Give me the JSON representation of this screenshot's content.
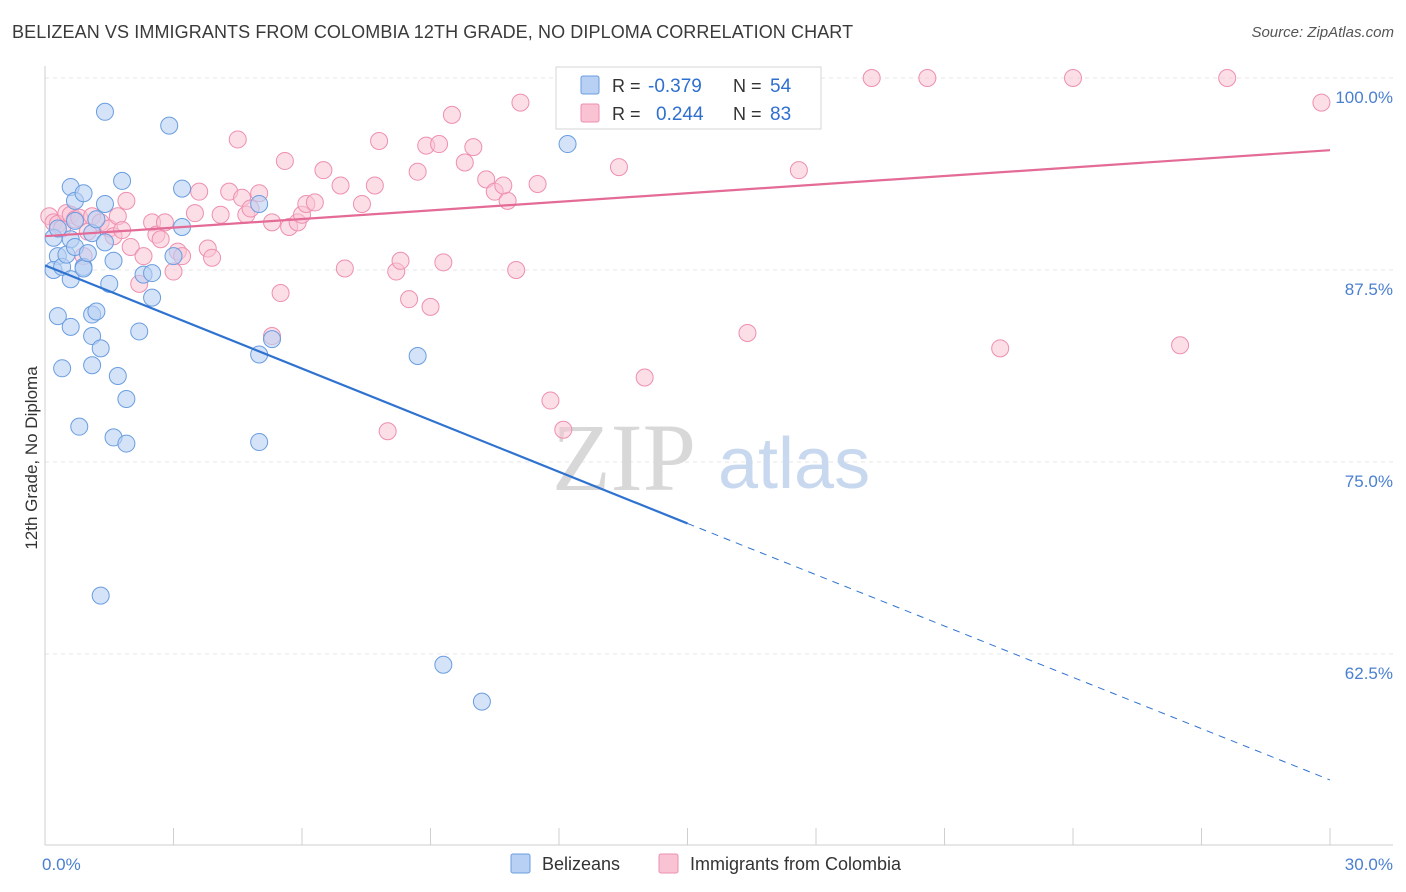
{
  "header": {
    "title": "BELIZEAN VS IMMIGRANTS FROM COLOMBIA 12TH GRADE, NO DIPLOMA CORRELATION CHART",
    "source": "Source: ZipAtlas.com"
  },
  "watermark": {
    "part1": "ZIP",
    "part2": "atlas"
  },
  "legend": {
    "rows": [
      {
        "r_label": "R =",
        "r_value": "-0.379",
        "n_label": "N =",
        "n_value": "54"
      },
      {
        "r_label": "R =",
        "r_value": "0.244",
        "n_label": "N =",
        "n_value": "83"
      }
    ]
  },
  "bottom_legend": {
    "items": [
      "Belizeans",
      "Immigrants from Colombia"
    ]
  },
  "colors": {
    "belizeans_fill": "#b8d0f4",
    "belizeans_stroke": "#6a9de0",
    "belizeans_line": "#2f72d0",
    "colombia_fill": "#f9c3d4",
    "colombia_stroke": "#ee8fb0",
    "colombia_line": "#e36b96",
    "grid": "#e6e6e6",
    "tick_text": "#4a7fd0"
  },
  "chart_data": {
    "type": "scatter",
    "title": "BELIZEAN VS IMMIGRANTS FROM COLOMBIA 12TH GRADE, NO DIPLOMA CORRELATION CHART",
    "xlabel": "",
    "ylabel": "12th Grade, No Diploma",
    "xlim": [
      0,
      30
    ],
    "ylim": [
      51,
      102
    ],
    "x_tick_labels": [
      "0.0%",
      "30.0%"
    ],
    "x_tick_values": [
      0,
      30
    ],
    "y_tick_labels": [
      "62.5%",
      "75.0%",
      "87.5%",
      "100.0%"
    ],
    "y_tick_values": [
      62.5,
      75,
      87.5,
      100
    ],
    "grid": true,
    "legend_position": "top-center",
    "series": [
      {
        "name": "Belizeans",
        "r": -0.379,
        "n": 54,
        "trend": {
          "x": [
            0,
            15
          ],
          "y": [
            87.8,
            71.0
          ],
          "dashed_to": [
            30,
            54.3
          ]
        },
        "points": [
          [
            0.2,
            89.6
          ],
          [
            0.3,
            90.2
          ],
          [
            0.3,
            88.4
          ],
          [
            0.2,
            87.5
          ],
          [
            0.4,
            87.7
          ],
          [
            0.3,
            84.5
          ],
          [
            0.5,
            88.5
          ],
          [
            0.6,
            89.5
          ],
          [
            0.6,
            86.9
          ],
          [
            0.4,
            81.1
          ],
          [
            0.6,
            83.8
          ],
          [
            0.6,
            92.9
          ],
          [
            0.7,
            92.0
          ],
          [
            0.7,
            89.0
          ],
          [
            0.7,
            90.7
          ],
          [
            0.9,
            87.7
          ],
          [
            0.9,
            87.6
          ],
          [
            0.9,
            92.5
          ],
          [
            1.0,
            88.6
          ],
          [
            1.1,
            84.6
          ],
          [
            1.1,
            83.2
          ],
          [
            1.1,
            81.3
          ],
          [
            1.1,
            89.9
          ],
          [
            1.2,
            84.8
          ],
          [
            1.3,
            82.4
          ],
          [
            1.2,
            90.8
          ],
          [
            1.4,
            91.8
          ],
          [
            1.4,
            89.3
          ],
          [
            1.4,
            97.8
          ],
          [
            1.5,
            86.6
          ],
          [
            1.6,
            88.1
          ],
          [
            1.7,
            80.6
          ],
          [
            1.8,
            93.3
          ],
          [
            1.9,
            79.1
          ],
          [
            2.2,
            83.5
          ],
          [
            2.3,
            87.2
          ],
          [
            2.5,
            85.7
          ],
          [
            2.5,
            87.3
          ],
          [
            2.9,
            96.9
          ],
          [
            3.0,
            88.4
          ],
          [
            3.2,
            92.8
          ],
          [
            3.2,
            90.3
          ],
          [
            5.0,
            82.0
          ],
          [
            5.0,
            76.3
          ],
          [
            5.0,
            91.8
          ],
          [
            5.3,
            83.0
          ],
          [
            8.7,
            81.9
          ],
          [
            9.3,
            61.8
          ],
          [
            10.2,
            59.4
          ],
          [
            12.2,
            95.7
          ],
          [
            0.8,
            77.3
          ],
          [
            1.6,
            76.6
          ],
          [
            1.9,
            76.2
          ],
          [
            1.3,
            66.3
          ]
        ]
      },
      {
        "name": "Immigrants from Colombia",
        "r": 0.244,
        "n": 83,
        "trend": {
          "x": [
            0,
            30
          ],
          "y": [
            89.7,
            95.3
          ]
        },
        "points": [
          [
            0.1,
            91.0
          ],
          [
            0.2,
            90.6
          ],
          [
            0.3,
            90.5
          ],
          [
            0.4,
            90.2
          ],
          [
            0.5,
            91.2
          ],
          [
            0.6,
            91.1
          ],
          [
            0.7,
            90.8
          ],
          [
            0.8,
            90.9
          ],
          [
            0.9,
            88.4
          ],
          [
            1.0,
            90.0
          ],
          [
            1.1,
            91.0
          ],
          [
            1.3,
            90.6
          ],
          [
            1.5,
            90.2
          ],
          [
            1.6,
            89.7
          ],
          [
            1.7,
            91.0
          ],
          [
            1.8,
            90.1
          ],
          [
            1.9,
            92.0
          ],
          [
            2.0,
            89.0
          ],
          [
            2.2,
            86.6
          ],
          [
            2.3,
            88.4
          ],
          [
            2.5,
            90.6
          ],
          [
            2.6,
            89.8
          ],
          [
            2.7,
            89.5
          ],
          [
            2.8,
            90.6
          ],
          [
            3.0,
            87.4
          ],
          [
            3.1,
            88.7
          ],
          [
            3.2,
            88.4
          ],
          [
            3.5,
            91.2
          ],
          [
            3.6,
            92.6
          ],
          [
            3.8,
            88.9
          ],
          [
            3.9,
            88.3
          ],
          [
            4.1,
            91.1
          ],
          [
            4.3,
            92.6
          ],
          [
            4.5,
            96.0
          ],
          [
            4.6,
            92.2
          ],
          [
            4.7,
            91.1
          ],
          [
            4.8,
            91.5
          ],
          [
            5.0,
            92.5
          ],
          [
            5.3,
            90.6
          ],
          [
            5.3,
            83.2
          ],
          [
            5.5,
            86.0
          ],
          [
            5.6,
            94.6
          ],
          [
            5.7,
            90.3
          ],
          [
            5.9,
            90.6
          ],
          [
            6.0,
            91.1
          ],
          [
            6.1,
            91.8
          ],
          [
            6.3,
            91.9
          ],
          [
            6.5,
            94.0
          ],
          [
            6.9,
            93.0
          ],
          [
            7.0,
            87.6
          ],
          [
            7.4,
            91.8
          ],
          [
            7.7,
            93.0
          ],
          [
            7.8,
            95.9
          ],
          [
            8.2,
            87.4
          ],
          [
            8.3,
            88.1
          ],
          [
            8.5,
            85.6
          ],
          [
            8.7,
            93.9
          ],
          [
            8.9,
            95.6
          ],
          [
            9.0,
            85.1
          ],
          [
            9.2,
            95.7
          ],
          [
            9.3,
            88.0
          ],
          [
            9.5,
            97.6
          ],
          [
            9.8,
            94.5
          ],
          [
            10.0,
            95.5
          ],
          [
            10.3,
            93.4
          ],
          [
            10.5,
            92.6
          ],
          [
            10.8,
            92.0
          ],
          [
            11.0,
            87.5
          ],
          [
            11.1,
            98.4
          ],
          [
            11.5,
            93.1
          ],
          [
            11.8,
            79.0
          ],
          [
            12.1,
            77.1
          ],
          [
            12.5,
            97.4
          ],
          [
            13.4,
            94.2
          ],
          [
            13.9,
            100.0
          ],
          [
            14.0,
            80.5
          ],
          [
            16.4,
            83.4
          ],
          [
            17.6,
            94.0
          ],
          [
            19.3,
            100.0
          ],
          [
            20.6,
            100.0
          ],
          [
            22.3,
            82.4
          ],
          [
            24.0,
            100.0
          ],
          [
            26.5,
            82.6
          ]
        ],
        "extra_points": [
          [
            27.6,
            100.0
          ],
          [
            29.8,
            98.4
          ],
          [
            10.7,
            93.0
          ],
          [
            8.0,
            77.0
          ]
        ]
      }
    ]
  }
}
